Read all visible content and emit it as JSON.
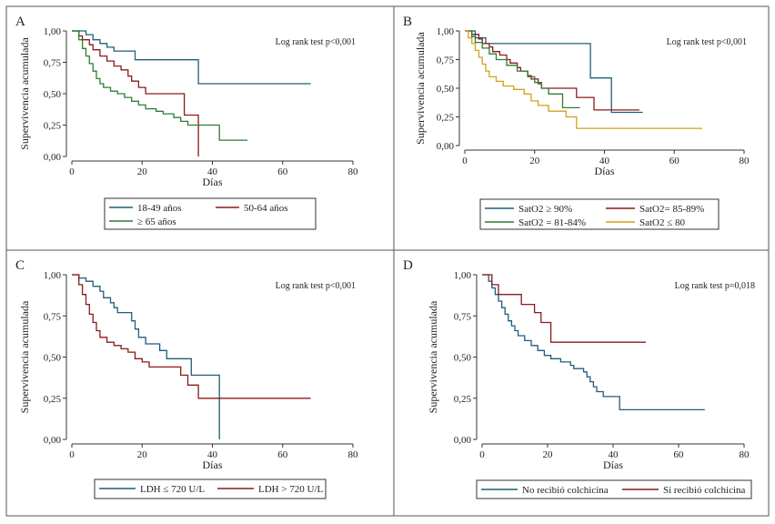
{
  "chart_data": [
    {
      "type": "line",
      "panel_letter": "A",
      "ylabel": "Supervivencia acumulada",
      "xlabel": "Días",
      "annotation": "Log rank test p<0,001",
      "xlim": [
        0,
        80
      ],
      "ylim": [
        0,
        1
      ],
      "xticks": [
        {
          "v": 0,
          "t": "0"
        },
        {
          "v": 20,
          "t": "20"
        },
        {
          "v": 40,
          "t": "40"
        },
        {
          "v": 60,
          "t": "60"
        },
        {
          "v": 80,
          "t": "80"
        }
      ],
      "yticks": [
        {
          "v": 0,
          "t": "0,00"
        },
        {
          "v": 0.25,
          "t": "0,25"
        },
        {
          "v": 0.5,
          "t": "0,50"
        },
        {
          "v": 0.75,
          "t": "0,75"
        },
        {
          "v": 1,
          "t": "1,00"
        }
      ],
      "legend_cols": 2,
      "series": [
        {
          "name": "18-49 años",
          "color": "#1f5f7a",
          "steps": [
            [
              0,
              1
            ],
            [
              4,
              0.97
            ],
            [
              6,
              0.93
            ],
            [
              8,
              0.9
            ],
            [
              10,
              0.87
            ],
            [
              12,
              0.84
            ],
            [
              18,
              0.77
            ],
            [
              36,
              0.58
            ],
            [
              68,
              0.58
            ]
          ]
        },
        {
          "name": "50-64 años",
          "color": "#8b1a1a",
          "steps": [
            [
              0,
              1
            ],
            [
              2,
              0.96
            ],
            [
              3,
              0.93
            ],
            [
              5,
              0.89
            ],
            [
              6,
              0.85
            ],
            [
              8,
              0.8
            ],
            [
              10,
              0.76
            ],
            [
              12,
              0.72
            ],
            [
              14,
              0.69
            ],
            [
              16,
              0.64
            ],
            [
              17,
              0.6
            ],
            [
              19,
              0.55
            ],
            [
              21,
              0.5
            ],
            [
              31,
              0.5
            ],
            [
              32,
              0.33
            ],
            [
              35,
              0.33
            ],
            [
              36,
              0
            ]
          ]
        },
        {
          "name": "≥ 65 años",
          "color": "#2e7d32",
          "steps": [
            [
              0,
              1
            ],
            [
              2,
              0.93
            ],
            [
              3,
              0.86
            ],
            [
              4,
              0.8
            ],
            [
              5,
              0.74
            ],
            [
              6,
              0.68
            ],
            [
              7,
              0.62
            ],
            [
              8,
              0.58
            ],
            [
              9,
              0.55
            ],
            [
              11,
              0.52
            ],
            [
              13,
              0.5
            ],
            [
              15,
              0.47
            ],
            [
              17,
              0.44
            ],
            [
              19,
              0.41
            ],
            [
              21,
              0.38
            ],
            [
              24,
              0.36
            ],
            [
              26,
              0.34
            ],
            [
              29,
              0.31
            ],
            [
              31,
              0.28
            ],
            [
              33,
              0.25
            ],
            [
              42,
              0.13
            ],
            [
              50,
              0.13
            ]
          ]
        }
      ]
    },
    {
      "type": "line",
      "panel_letter": "B",
      "ylabel": "Supervivencia acumulada",
      "xlabel": "Días",
      "annotation": "Log rank test p<0,001",
      "xlim": [
        0,
        80
      ],
      "ylim": [
        0,
        1
      ],
      "xticks": [
        {
          "v": 0,
          "t": "0"
        },
        {
          "v": 20,
          "t": "20"
        },
        {
          "v": 40,
          "t": "40"
        },
        {
          "v": 60,
          "t": "60"
        },
        {
          "v": 80,
          "t": "80"
        }
      ],
      "yticks": [
        {
          "v": 0,
          "t": "0,00"
        },
        {
          "v": 0.25,
          "t": "0,25"
        },
        {
          "v": 0.5,
          "t": "0,50"
        },
        {
          "v": 0.75,
          "t": "0,75"
        },
        {
          "v": 1,
          "t": "1,00"
        }
      ],
      "legend_cols": 2,
      "series": [
        {
          "name": "SatO2 ≥ 90%",
          "color": "#1f5f7a",
          "steps": [
            [
              0,
              1
            ],
            [
              3,
              0.94
            ],
            [
              6,
              0.89
            ],
            [
              36,
              0.59
            ],
            [
              42,
              0.29
            ],
            [
              51,
              0.29
            ]
          ]
        },
        {
          "name": "SatO2= 85-89%",
          "color": "#8b1a1a",
          "steps": [
            [
              0,
              1
            ],
            [
              2,
              0.97
            ],
            [
              4,
              0.93
            ],
            [
              5,
              0.89
            ],
            [
              7,
              0.86
            ],
            [
              8,
              0.82
            ],
            [
              10,
              0.79
            ],
            [
              12,
              0.75
            ],
            [
              13,
              0.72
            ],
            [
              15,
              0.68
            ],
            [
              16,
              0.65
            ],
            [
              18,
              0.61
            ],
            [
              19,
              0.58
            ],
            [
              21,
              0.54
            ],
            [
              22,
              0.5
            ],
            [
              31,
              0.5
            ],
            [
              32,
              0.42
            ],
            [
              37,
              0.31
            ],
            [
              50,
              0.31
            ]
          ]
        },
        {
          "name": "SatO2 = 81-84%",
          "color": "#2e7d32",
          "steps": [
            [
              0,
              1
            ],
            [
              2,
              0.95
            ],
            [
              3,
              0.9
            ],
            [
              5,
              0.85
            ],
            [
              7,
              0.8
            ],
            [
              9,
              0.75
            ],
            [
              12,
              0.7
            ],
            [
              15,
              0.65
            ],
            [
              18,
              0.6
            ],
            [
              20,
              0.55
            ],
            [
              22,
              0.5
            ],
            [
              24,
              0.45
            ],
            [
              28,
              0.33
            ],
            [
              33,
              0.33
            ]
          ]
        },
        {
          "name": "SatO2 ≤ 80",
          "color": "#d4a017",
          "steps": [
            [
              0,
              1
            ],
            [
              1,
              0.94
            ],
            [
              2,
              0.89
            ],
            [
              3,
              0.83
            ],
            [
              4,
              0.77
            ],
            [
              5,
              0.71
            ],
            [
              6,
              0.65
            ],
            [
              7,
              0.6
            ],
            [
              9,
              0.56
            ],
            [
              11,
              0.52
            ],
            [
              14,
              0.49
            ],
            [
              17,
              0.45
            ],
            [
              19,
              0.39
            ],
            [
              21,
              0.35
            ],
            [
              24,
              0.3
            ],
            [
              29,
              0.25
            ],
            [
              32,
              0.15
            ],
            [
              68,
              0.15
            ]
          ]
        }
      ]
    },
    {
      "type": "line",
      "panel_letter": "C",
      "ylabel": "Supervivencia acumulada",
      "xlabel": "Días",
      "annotation": "Log rank test p<0,001",
      "xlim": [
        0,
        80
      ],
      "ylim": [
        0,
        1
      ],
      "xticks": [
        {
          "v": 0,
          "t": "0"
        },
        {
          "v": 20,
          "t": "20"
        },
        {
          "v": 40,
          "t": "40"
        },
        {
          "v": 60,
          "t": "60"
        },
        {
          "v": 80,
          "t": "80"
        }
      ],
      "yticks": [
        {
          "v": 0,
          "t": "0,00"
        },
        {
          "v": 0.25,
          "t": "0,25"
        },
        {
          "v": 0.5,
          "t": "0,50"
        },
        {
          "v": 0.75,
          "t": "0,75"
        },
        {
          "v": 1,
          "t": "1,00"
        }
      ],
      "legend_cols": 2,
      "series": [
        {
          "name": "LDH ≤ 720 U/L",
          "color": "#1f5f7a",
          "steps": [
            [
              0,
              1
            ],
            [
              2,
              0.98
            ],
            [
              4,
              0.96
            ],
            [
              6,
              0.93
            ],
            [
              8,
              0.9
            ],
            [
              9,
              0.86
            ],
            [
              11,
              0.83
            ],
            [
              12,
              0.8
            ],
            [
              13,
              0.77
            ],
            [
              17,
              0.72
            ],
            [
              18,
              0.67
            ],
            [
              19,
              0.62
            ],
            [
              21,
              0.58
            ],
            [
              25,
              0.54
            ],
            [
              27,
              0.49
            ],
            [
              34,
              0.39
            ],
            [
              42,
              0
            ]
          ]
        },
        {
          "name": "LDH > 720 U/L",
          "color": "#8b1a1a",
          "steps": [
            [
              0,
              1
            ],
            [
              2,
              0.94
            ],
            [
              3,
              0.88
            ],
            [
              4,
              0.82
            ],
            [
              5,
              0.76
            ],
            [
              6,
              0.71
            ],
            [
              7,
              0.66
            ],
            [
              8,
              0.62
            ],
            [
              10,
              0.59
            ],
            [
              12,
              0.57
            ],
            [
              14,
              0.55
            ],
            [
              16,
              0.53
            ],
            [
              18,
              0.49
            ],
            [
              20,
              0.47
            ],
            [
              22,
              0.44
            ],
            [
              31,
              0.39
            ],
            [
              33,
              0.33
            ],
            [
              36,
              0.25
            ],
            [
              68,
              0.25
            ]
          ]
        }
      ]
    },
    {
      "type": "line",
      "panel_letter": "D",
      "ylabel": "Supervivencia acumulada",
      "xlabel": "Días",
      "annotation": "Log rank test p=0,018",
      "xlim": [
        0,
        80
      ],
      "ylim": [
        0,
        1
      ],
      "xticks": [
        {
          "v": 0,
          "t": "0"
        },
        {
          "v": 20,
          "t": "20"
        },
        {
          "v": 40,
          "t": "40"
        },
        {
          "v": 60,
          "t": "60"
        },
        {
          "v": 80,
          "t": "80"
        }
      ],
      "yticks": [
        {
          "v": 0,
          "t": "0,00"
        },
        {
          "v": 0.25,
          "t": "0,25"
        },
        {
          "v": 0.5,
          "t": "0,50"
        },
        {
          "v": 0.75,
          "t": "0,75"
        },
        {
          "v": 1,
          "t": "1,00"
        }
      ],
      "legend_cols": 2,
      "series": [
        {
          "name": "No recibió colchicina",
          "color": "#1f5f7a",
          "steps": [
            [
              0,
              1
            ],
            [
              2,
              0.96
            ],
            [
              3,
              0.92
            ],
            [
              4,
              0.88
            ],
            [
              5,
              0.84
            ],
            [
              6,
              0.8
            ],
            [
              7,
              0.76
            ],
            [
              8,
              0.72
            ],
            [
              9,
              0.69
            ],
            [
              10,
              0.66
            ],
            [
              11,
              0.63
            ],
            [
              13,
              0.6
            ],
            [
              15,
              0.57
            ],
            [
              17,
              0.54
            ],
            [
              19,
              0.51
            ],
            [
              21,
              0.49
            ],
            [
              24,
              0.47
            ],
            [
              27,
              0.45
            ],
            [
              28,
              0.43
            ],
            [
              31,
              0.41
            ],
            [
              32,
              0.38
            ],
            [
              33,
              0.35
            ],
            [
              34,
              0.32
            ],
            [
              35,
              0.29
            ],
            [
              37,
              0.26
            ],
            [
              42,
              0.18
            ],
            [
              68,
              0.18
            ]
          ]
        },
        {
          "name": "Si recibió colchicina",
          "color": "#8b1a1a",
          "steps": [
            [
              0,
              1
            ],
            [
              3,
              0.94
            ],
            [
              5,
              0.88
            ],
            [
              12,
              0.82
            ],
            [
              16,
              0.77
            ],
            [
              18,
              0.71
            ],
            [
              21,
              0.59
            ],
            [
              50,
              0.59
            ]
          ]
        }
      ]
    }
  ]
}
